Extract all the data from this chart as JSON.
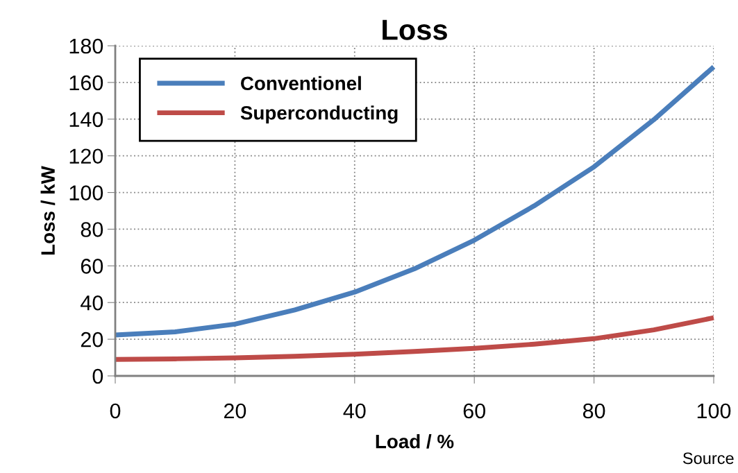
{
  "chart_data": {
    "type": "line",
    "title": "Loss",
    "xlabel": "Load / %",
    "ylabel": "Loss / kW",
    "x": [
      0,
      10,
      20,
      30,
      40,
      50,
      60,
      70,
      80,
      90,
      100
    ],
    "series": [
      {
        "name": "Conventionel",
        "color": "#4a7ebb",
        "values": [
          22.3,
          24,
          28.2,
          36,
          45.7,
          58.4,
          74,
          92.7,
          114,
          139.7,
          168.5
        ]
      },
      {
        "name": "Superconducting",
        "color": "#be4b48",
        "values": [
          9,
          9.3,
          9.8,
          10.7,
          11.8,
          13.3,
          15,
          17.3,
          20.3,
          25.1,
          31.7
        ]
      }
    ],
    "xlim": [
      0,
      100
    ],
    "xticks": [
      0,
      20,
      40,
      60,
      80,
      100
    ],
    "ylim": [
      0,
      180
    ],
    "yticks": [
      0,
      20,
      40,
      60,
      80,
      100,
      120,
      140,
      160,
      180
    ],
    "grid": true,
    "legend": "top left",
    "line_style": "solid",
    "marker": "none",
    "annotations": [
      "Source"
    ]
  }
}
